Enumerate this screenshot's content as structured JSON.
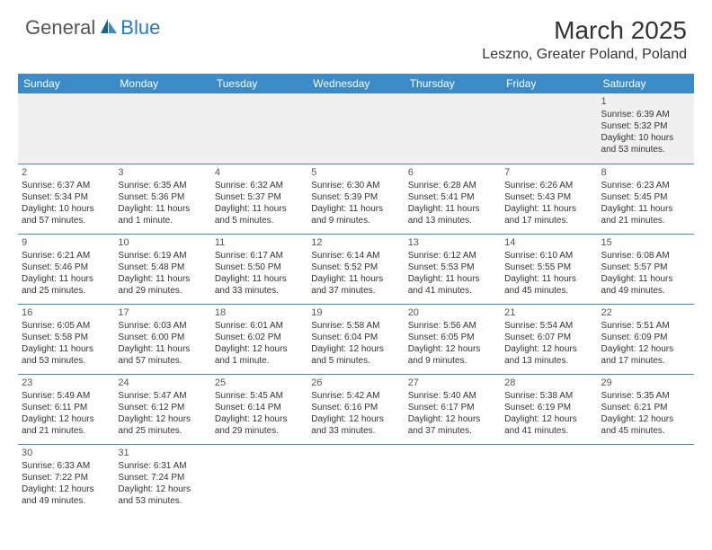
{
  "logo": {
    "part1": "General",
    "part2": "Blue"
  },
  "title": "March 2025",
  "location": "Leszno, Greater Poland, Poland",
  "colors": {
    "header_bg": "#3b8bc8",
    "header_text": "#ffffff",
    "border": "#3b8bc8",
    "logo_gray": "#555555",
    "logo_blue": "#2a7ab8",
    "empty_bg": "#f0f0f0"
  },
  "weekdays": [
    "Sunday",
    "Monday",
    "Tuesday",
    "Wednesday",
    "Thursday",
    "Friday",
    "Saturday"
  ],
  "weeks": [
    [
      null,
      null,
      null,
      null,
      null,
      null,
      {
        "n": "1",
        "sr": "Sunrise: 6:39 AM",
        "ss": "Sunset: 5:32 PM",
        "d1": "Daylight: 10 hours",
        "d2": "and 53 minutes."
      }
    ],
    [
      {
        "n": "2",
        "sr": "Sunrise: 6:37 AM",
        "ss": "Sunset: 5:34 PM",
        "d1": "Daylight: 10 hours",
        "d2": "and 57 minutes."
      },
      {
        "n": "3",
        "sr": "Sunrise: 6:35 AM",
        "ss": "Sunset: 5:36 PM",
        "d1": "Daylight: 11 hours",
        "d2": "and 1 minute."
      },
      {
        "n": "4",
        "sr": "Sunrise: 6:32 AM",
        "ss": "Sunset: 5:37 PM",
        "d1": "Daylight: 11 hours",
        "d2": "and 5 minutes."
      },
      {
        "n": "5",
        "sr": "Sunrise: 6:30 AM",
        "ss": "Sunset: 5:39 PM",
        "d1": "Daylight: 11 hours",
        "d2": "and 9 minutes."
      },
      {
        "n": "6",
        "sr": "Sunrise: 6:28 AM",
        "ss": "Sunset: 5:41 PM",
        "d1": "Daylight: 11 hours",
        "d2": "and 13 minutes."
      },
      {
        "n": "7",
        "sr": "Sunrise: 6:26 AM",
        "ss": "Sunset: 5:43 PM",
        "d1": "Daylight: 11 hours",
        "d2": "and 17 minutes."
      },
      {
        "n": "8",
        "sr": "Sunrise: 6:23 AM",
        "ss": "Sunset: 5:45 PM",
        "d1": "Daylight: 11 hours",
        "d2": "and 21 minutes."
      }
    ],
    [
      {
        "n": "9",
        "sr": "Sunrise: 6:21 AM",
        "ss": "Sunset: 5:46 PM",
        "d1": "Daylight: 11 hours",
        "d2": "and 25 minutes."
      },
      {
        "n": "10",
        "sr": "Sunrise: 6:19 AM",
        "ss": "Sunset: 5:48 PM",
        "d1": "Daylight: 11 hours",
        "d2": "and 29 minutes."
      },
      {
        "n": "11",
        "sr": "Sunrise: 6:17 AM",
        "ss": "Sunset: 5:50 PM",
        "d1": "Daylight: 11 hours",
        "d2": "and 33 minutes."
      },
      {
        "n": "12",
        "sr": "Sunrise: 6:14 AM",
        "ss": "Sunset: 5:52 PM",
        "d1": "Daylight: 11 hours",
        "d2": "and 37 minutes."
      },
      {
        "n": "13",
        "sr": "Sunrise: 6:12 AM",
        "ss": "Sunset: 5:53 PM",
        "d1": "Daylight: 11 hours",
        "d2": "and 41 minutes."
      },
      {
        "n": "14",
        "sr": "Sunrise: 6:10 AM",
        "ss": "Sunset: 5:55 PM",
        "d1": "Daylight: 11 hours",
        "d2": "and 45 minutes."
      },
      {
        "n": "15",
        "sr": "Sunrise: 6:08 AM",
        "ss": "Sunset: 5:57 PM",
        "d1": "Daylight: 11 hours",
        "d2": "and 49 minutes."
      }
    ],
    [
      {
        "n": "16",
        "sr": "Sunrise: 6:05 AM",
        "ss": "Sunset: 5:58 PM",
        "d1": "Daylight: 11 hours",
        "d2": "and 53 minutes."
      },
      {
        "n": "17",
        "sr": "Sunrise: 6:03 AM",
        "ss": "Sunset: 6:00 PM",
        "d1": "Daylight: 11 hours",
        "d2": "and 57 minutes."
      },
      {
        "n": "18",
        "sr": "Sunrise: 6:01 AM",
        "ss": "Sunset: 6:02 PM",
        "d1": "Daylight: 12 hours",
        "d2": "and 1 minute."
      },
      {
        "n": "19",
        "sr": "Sunrise: 5:58 AM",
        "ss": "Sunset: 6:04 PM",
        "d1": "Daylight: 12 hours",
        "d2": "and 5 minutes."
      },
      {
        "n": "20",
        "sr": "Sunrise: 5:56 AM",
        "ss": "Sunset: 6:05 PM",
        "d1": "Daylight: 12 hours",
        "d2": "and 9 minutes."
      },
      {
        "n": "21",
        "sr": "Sunrise: 5:54 AM",
        "ss": "Sunset: 6:07 PM",
        "d1": "Daylight: 12 hours",
        "d2": "and 13 minutes."
      },
      {
        "n": "22",
        "sr": "Sunrise: 5:51 AM",
        "ss": "Sunset: 6:09 PM",
        "d1": "Daylight: 12 hours",
        "d2": "and 17 minutes."
      }
    ],
    [
      {
        "n": "23",
        "sr": "Sunrise: 5:49 AM",
        "ss": "Sunset: 6:11 PM",
        "d1": "Daylight: 12 hours",
        "d2": "and 21 minutes."
      },
      {
        "n": "24",
        "sr": "Sunrise: 5:47 AM",
        "ss": "Sunset: 6:12 PM",
        "d1": "Daylight: 12 hours",
        "d2": "and 25 minutes."
      },
      {
        "n": "25",
        "sr": "Sunrise: 5:45 AM",
        "ss": "Sunset: 6:14 PM",
        "d1": "Daylight: 12 hours",
        "d2": "and 29 minutes."
      },
      {
        "n": "26",
        "sr": "Sunrise: 5:42 AM",
        "ss": "Sunset: 6:16 PM",
        "d1": "Daylight: 12 hours",
        "d2": "and 33 minutes."
      },
      {
        "n": "27",
        "sr": "Sunrise: 5:40 AM",
        "ss": "Sunset: 6:17 PM",
        "d1": "Daylight: 12 hours",
        "d2": "and 37 minutes."
      },
      {
        "n": "28",
        "sr": "Sunrise: 5:38 AM",
        "ss": "Sunset: 6:19 PM",
        "d1": "Daylight: 12 hours",
        "d2": "and 41 minutes."
      },
      {
        "n": "29",
        "sr": "Sunrise: 5:35 AM",
        "ss": "Sunset: 6:21 PM",
        "d1": "Daylight: 12 hours",
        "d2": "and 45 minutes."
      }
    ],
    [
      {
        "n": "30",
        "sr": "Sunrise: 6:33 AM",
        "ss": "Sunset: 7:22 PM",
        "d1": "Daylight: 12 hours",
        "d2": "and 49 minutes."
      },
      {
        "n": "31",
        "sr": "Sunrise: 6:31 AM",
        "ss": "Sunset: 7:24 PM",
        "d1": "Daylight: 12 hours",
        "d2": "and 53 minutes."
      },
      null,
      null,
      null,
      null,
      null
    ]
  ]
}
